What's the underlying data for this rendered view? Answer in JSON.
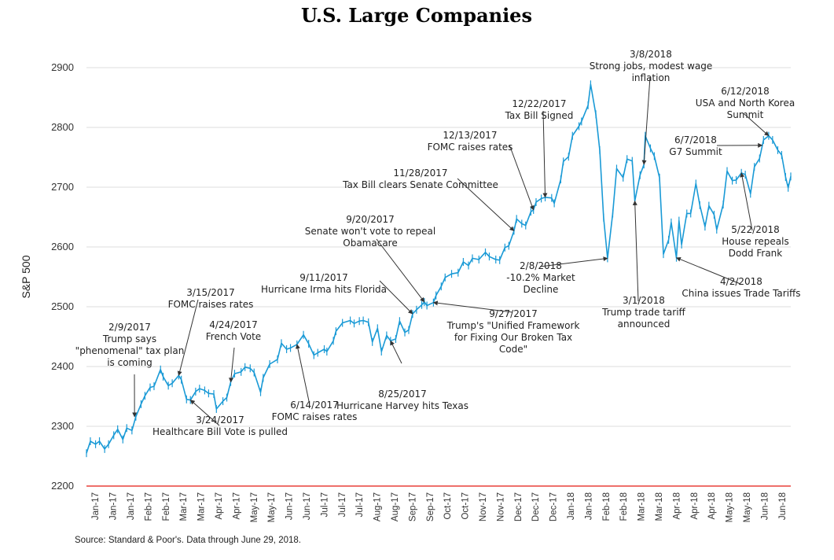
{
  "chart_data": {
    "type": "line",
    "title": "U.S. Large Companies",
    "ylabel": "S&P 500",
    "xlabel": "",
    "ylim": [
      2200,
      2900
    ],
    "yticks": [
      2200,
      2300,
      2400,
      2500,
      2600,
      2700,
      2800,
      2900
    ],
    "grid": "horizontal",
    "legend": "none",
    "colors": {
      "line": "#1a9ad6",
      "baseline": "#e8413a",
      "grid": "#dddddd",
      "arrow": "#333333"
    },
    "x_tick_labels": [
      "Jan-17",
      "Jan-17",
      "Jan-17",
      "Feb-17",
      "Feb-17",
      "Mar-17",
      "Mar-17",
      "Apr-17",
      "Apr-17",
      "May-17",
      "May-17",
      "Jun-17",
      "Jun-17",
      "Jul-17",
      "Jul-17",
      "Jul-17",
      "Aug-17",
      "Aug-17",
      "Sep-17",
      "Sep-17",
      "Oct-17",
      "Oct-17",
      "Nov-17",
      "Nov-17",
      "Dec-17",
      "Dec-17",
      "Dec-17",
      "Jan-18",
      "Jan-18",
      "Feb-18",
      "Feb-18",
      "Mar-18",
      "Mar-18",
      "Apr-18",
      "Apr-18",
      "Apr-18",
      "May-18",
      "May-18",
      "Jun-18",
      "Jun-18"
    ],
    "x_range": [
      "2017-01-03",
      "2018-06-29"
    ],
    "series": [
      {
        "points": [
          [
            "2017-01-03",
            2255
          ],
          [
            "2017-01-06",
            2275
          ],
          [
            "2017-01-10",
            2270
          ],
          [
            "2017-01-13",
            2275
          ],
          [
            "2017-01-17",
            2262
          ],
          [
            "2017-01-20",
            2270
          ],
          [
            "2017-01-24",
            2285
          ],
          [
            "2017-01-27",
            2295
          ],
          [
            "2017-01-31",
            2278
          ],
          [
            "2017-02-03",
            2297
          ],
          [
            "2017-02-07",
            2293
          ],
          [
            "2017-02-10",
            2316
          ],
          [
            "2017-02-14",
            2337
          ],
          [
            "2017-02-17",
            2351
          ],
          [
            "2017-02-21",
            2365
          ],
          [
            "2017-02-24",
            2367
          ],
          [
            "2017-03-01",
            2395
          ],
          [
            "2017-03-03",
            2383
          ],
          [
            "2017-03-07",
            2368
          ],
          [
            "2017-03-10",
            2372
          ],
          [
            "2017-03-15",
            2385
          ],
          [
            "2017-03-17",
            2378
          ],
          [
            "2017-03-21",
            2345
          ],
          [
            "2017-03-24",
            2344
          ],
          [
            "2017-03-28",
            2358
          ],
          [
            "2017-03-31",
            2363
          ],
          [
            "2017-04-04",
            2360
          ],
          [
            "2017-04-07",
            2355
          ],
          [
            "2017-04-11",
            2354
          ],
          [
            "2017-04-13",
            2329
          ],
          [
            "2017-04-18",
            2342
          ],
          [
            "2017-04-21",
            2348
          ],
          [
            "2017-04-24",
            2374
          ],
          [
            "2017-04-27",
            2388
          ],
          [
            "2017-05-02",
            2391
          ],
          [
            "2017-05-05",
            2399
          ],
          [
            "2017-05-09",
            2397
          ],
          [
            "2017-05-12",
            2390
          ],
          [
            "2017-05-17",
            2357
          ],
          [
            "2017-05-19",
            2381
          ],
          [
            "2017-05-24",
            2404
          ],
          [
            "2017-05-30",
            2412
          ],
          [
            "2017-06-02",
            2439
          ],
          [
            "2017-06-06",
            2429
          ],
          [
            "2017-06-09",
            2431
          ],
          [
            "2017-06-14",
            2437
          ],
          [
            "2017-06-19",
            2453
          ],
          [
            "2017-06-23",
            2438
          ],
          [
            "2017-06-27",
            2419
          ],
          [
            "2017-06-30",
            2423
          ],
          [
            "2017-07-05",
            2429
          ],
          [
            "2017-07-07",
            2425
          ],
          [
            "2017-07-12",
            2443
          ],
          [
            "2017-07-14",
            2459
          ],
          [
            "2017-07-19",
            2473
          ],
          [
            "2017-07-25",
            2477
          ],
          [
            "2017-07-28",
            2472
          ],
          [
            "2017-08-01",
            2476
          ],
          [
            "2017-08-04",
            2477
          ],
          [
            "2017-08-08",
            2474
          ],
          [
            "2017-08-11",
            2441
          ],
          [
            "2017-08-15",
            2464
          ],
          [
            "2017-08-18",
            2425
          ],
          [
            "2017-08-22",
            2452
          ],
          [
            "2017-08-25",
            2443
          ],
          [
            "2017-08-29",
            2446
          ],
          [
            "2017-09-01",
            2476
          ],
          [
            "2017-09-05",
            2457
          ],
          [
            "2017-09-08",
            2461
          ],
          [
            "2017-09-11",
            2488
          ],
          [
            "2017-09-14",
            2495
          ],
          [
            "2017-09-18",
            2503
          ],
          [
            "2017-09-20",
            2508
          ],
          [
            "2017-09-22",
            2502
          ],
          [
            "2017-09-27",
            2507
          ],
          [
            "2017-09-29",
            2519
          ],
          [
            "2017-10-03",
            2534
          ],
          [
            "2017-10-06",
            2549
          ],
          [
            "2017-10-11",
            2555
          ],
          [
            "2017-10-16",
            2557
          ],
          [
            "2017-10-20",
            2575
          ],
          [
            "2017-10-24",
            2569
          ],
          [
            "2017-10-27",
            2581
          ],
          [
            "2017-11-01",
            2579
          ],
          [
            "2017-11-06",
            2591
          ],
          [
            "2017-11-09",
            2584
          ],
          [
            "2017-11-14",
            2579
          ],
          [
            "2017-11-17",
            2578
          ],
          [
            "2017-11-21",
            2599
          ],
          [
            "2017-11-24",
            2602
          ],
          [
            "2017-11-28",
            2627
          ],
          [
            "2017-11-30",
            2647
          ],
          [
            "2017-12-04",
            2639
          ],
          [
            "2017-12-07",
            2636
          ],
          [
            "2017-12-11",
            2659
          ],
          [
            "2017-12-13",
            2662
          ],
          [
            "2017-12-15",
            2675
          ],
          [
            "2017-12-19",
            2681
          ],
          [
            "2017-12-22",
            2683
          ],
          [
            "2017-12-27",
            2682
          ],
          [
            "2017-12-29",
            2673
          ],
          [
            "2018-01-03",
            2713
          ],
          [
            "2018-01-05",
            2743
          ],
          [
            "2018-01-09",
            2751
          ],
          [
            "2018-01-12",
            2786
          ],
          [
            "2018-01-17",
            2802
          ],
          [
            "2018-01-19",
            2810
          ],
          [
            "2018-01-24",
            2837
          ],
          [
            "2018-01-26",
            2872
          ],
          [
            "2018-01-30",
            2822
          ],
          [
            "2018-02-02",
            2762
          ],
          [
            "2018-02-05",
            2649
          ],
          [
            "2018-02-08",
            2581
          ],
          [
            "2018-02-12",
            2656
          ],
          [
            "2018-02-15",
            2731
          ],
          [
            "2018-02-20",
            2716
          ],
          [
            "2018-02-23",
            2747
          ],
          [
            "2018-02-27",
            2744
          ],
          [
            "2018-03-01",
            2677
          ],
          [
            "2018-03-05",
            2720
          ],
          [
            "2018-03-08",
            2738
          ],
          [
            "2018-03-09",
            2786
          ],
          [
            "2018-03-13",
            2765
          ],
          [
            "2018-03-16",
            2752
          ],
          [
            "2018-03-20",
            2716
          ],
          [
            "2018-03-23",
            2588
          ],
          [
            "2018-03-27",
            2612
          ],
          [
            "2018-03-29",
            2641
          ],
          [
            "2018-04-02",
            2582
          ],
          [
            "2018-04-04",
            2644
          ],
          [
            "2018-04-06",
            2604
          ],
          [
            "2018-04-10",
            2656
          ],
          [
            "2018-04-13",
            2656
          ],
          [
            "2018-04-17",
            2706
          ],
          [
            "2018-04-20",
            2670
          ],
          [
            "2018-04-24",
            2634
          ],
          [
            "2018-04-27",
            2669
          ],
          [
            "2018-05-01",
            2654
          ],
          [
            "2018-05-03",
            2629
          ],
          [
            "2018-05-08",
            2671
          ],
          [
            "2018-05-11",
            2727
          ],
          [
            "2018-05-15",
            2711
          ],
          [
            "2018-05-18",
            2712
          ],
          [
            "2018-05-22",
            2724
          ],
          [
            "2018-05-25",
            2721
          ],
          [
            "2018-05-29",
            2689
          ],
          [
            "2018-06-01",
            2734
          ],
          [
            "2018-06-05",
            2748
          ],
          [
            "2018-06-08",
            2779
          ],
          [
            "2018-06-12",
            2786
          ],
          [
            "2018-06-15",
            2779
          ],
          [
            "2018-06-19",
            2762
          ],
          [
            "2018-06-22",
            2754
          ],
          [
            "2018-06-25",
            2717
          ],
          [
            "2018-06-27",
            2699
          ],
          [
            "2018-06-29",
            2718
          ]
        ]
      }
    ],
    "annotations": [
      {
        "lines": [
          "2/9/2017",
          "Trump says",
          "\"phenomenal\" tax plan",
          "is coming"
        ],
        "date": "2017-02-09",
        "value": 2316
      },
      {
        "lines": [
          "3/15/2017",
          "FOMC raises rates"
        ],
        "date": "2017-03-15",
        "value": 2385
      },
      {
        "lines": [
          "3/24/2017",
          "Healthcare Bill Vote is pulled"
        ],
        "date": "2017-03-24",
        "value": 2344
      },
      {
        "lines": [
          "4/24/2017",
          "French Vote"
        ],
        "date": "2017-04-24",
        "value": 2374
      },
      {
        "lines": [
          "6/14/2017",
          "FOMC raises rates"
        ],
        "date": "2017-06-14",
        "value": 2437
      },
      {
        "lines": [
          "8/25/2017",
          "Hurricane Harvey hits Texas"
        ],
        "date": "2017-08-25",
        "value": 2443
      },
      {
        "lines": [
          "9/11/2017",
          "Hurricane Irma hits Florida"
        ],
        "date": "2017-09-11",
        "value": 2488
      },
      {
        "lines": [
          "9/20/2017",
          "Senate won't vote to repeal",
          "Obamacare"
        ],
        "date": "2017-09-20",
        "value": 2508
      },
      {
        "lines": [
          "9/27/2017",
          "Trump's \"Unified Framework",
          "for Fixing Our Broken Tax",
          "Code\""
        ],
        "date": "2017-09-27",
        "value": 2507
      },
      {
        "lines": [
          "11/28/2017",
          "Tax Bill clears Senate Committee"
        ],
        "date": "2017-11-28",
        "value": 2627
      },
      {
        "lines": [
          "12/13/2017",
          "FOMC raises rates"
        ],
        "date": "2017-12-13",
        "value": 2662
      },
      {
        "lines": [
          "12/22/2017",
          "Tax Bill Signed"
        ],
        "date": "2017-12-22",
        "value": 2683
      },
      {
        "lines": [
          "2/8/2018",
          "-10.2% Market",
          "Decline"
        ],
        "date": "2018-02-08",
        "value": 2581
      },
      {
        "lines": [
          "3/1/2018",
          "Trump trade tariff",
          "announced"
        ],
        "date": "2018-03-01",
        "value": 2677
      },
      {
        "lines": [
          "3/8/2018",
          "Strong jobs, modest wage",
          "inflation"
        ],
        "date": "2018-03-08",
        "value": 2738
      },
      {
        "lines": [
          "4/2/2018",
          "China issues Trade Tariffs"
        ],
        "date": "2018-04-02",
        "value": 2582
      },
      {
        "lines": [
          "5/22/2018",
          "House repeals",
          "Dodd Frank"
        ],
        "date": "2018-05-22",
        "value": 2724
      },
      {
        "lines": [
          "6/7/2018",
          "G7 Summit"
        ],
        "date": "2018-06-07",
        "value": 2770
      },
      {
        "lines": [
          "6/12/2018",
          "USA and North Korea",
          "Summit"
        ],
        "date": "2018-06-12",
        "value": 2786
      }
    ]
  },
  "source_note": "Source: Standard & Poor's. Data through June 29, 2018."
}
